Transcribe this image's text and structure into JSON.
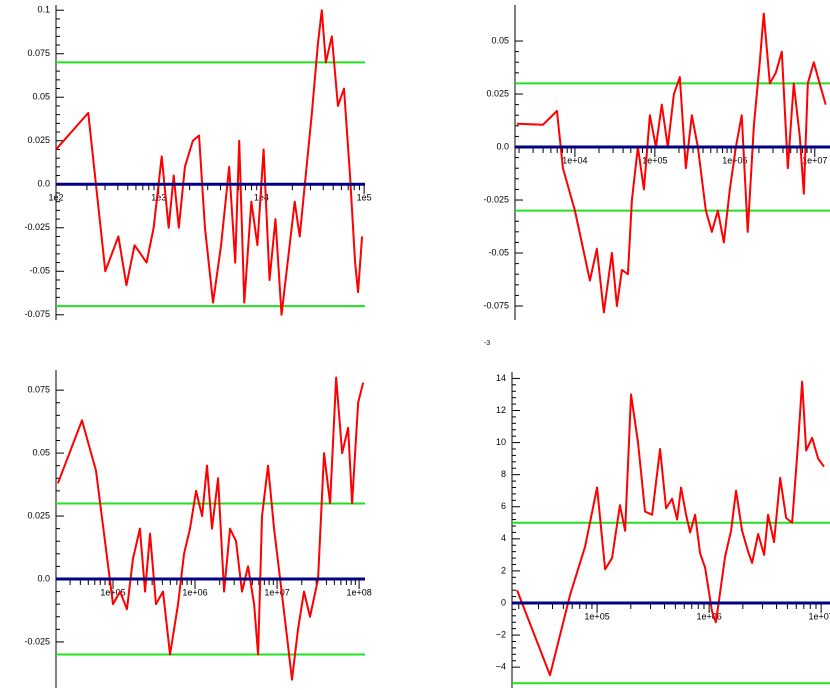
{
  "chart_data": [
    {
      "type": "line",
      "xscale": "log",
      "series": [
        {
          "color": "#ff0000",
          "x": [
            100,
            206,
            302,
            405,
            485,
            582,
            762,
            893,
            1070,
            1250,
            1400,
            1570,
            1800,
            2150,
            2470,
            2820,
            3380,
            4050,
            4850,
            5560,
            6080,
            6810,
            7980,
            9140,
            10500,
            12000,
            13700,
            15700,
            18000,
            21100,
            23600,
            27000,
            30900,
            35400,
            38700,
            42400,
            48500,
            55600,
            63700,
            72900,
            81700,
            87300,
            95500
          ],
          "values": [
            0.02,
            0.041,
            -0.05,
            -0.03,
            -0.058,
            -0.035,
            -0.045,
            -0.025,
            0.016,
            -0.025,
            0.005,
            -0.025,
            0.01,
            0.025,
            0.028,
            -0.025,
            -0.068,
            -0.035,
            0.01,
            -0.045,
            0.025,
            -0.068,
            -0.01,
            -0.035,
            0.02,
            -0.055,
            -0.02,
            -0.075,
            -0.045,
            -0.01,
            -0.03,
            0.005,
            0.04,
            0.08,
            0.1,
            0.07,
            0.085,
            0.045,
            0.055,
            0.005,
            -0.045,
            -0.062,
            -0.03
          ]
        }
      ],
      "xlim": [
        100,
        102000
      ],
      "xticks": [
        {
          "value": 100,
          "label": "1e2"
        },
        {
          "value": 1000,
          "label": "1e3"
        },
        {
          "value": 10000,
          "label": "1e4"
        },
        {
          "value": 100000,
          "label": "1e5"
        }
      ],
      "ylim": [
        -0.078,
        0.103
      ],
      "yticks": [
        {
          "value": -0.075,
          "label": "-0.075"
        },
        {
          "value": -0.05,
          "label": "-0.05"
        },
        {
          "value": -0.025,
          "label": "-0.025"
        },
        {
          "value": 0,
          "label": "0.0"
        },
        0.025,
        0.05,
        0.075,
        0.1
      ],
      "hlines": [
        {
          "value": 0.07,
          "color": "#22e022"
        },
        {
          "value": -0.07,
          "color": "#22e022"
        }
      ],
      "baseline": {
        "value": 0,
        "color": "#000080"
      }
    },
    {
      "type": "line",
      "xscale": "log",
      "series": [
        {
          "color": "#ff0000",
          "x": [
            1880,
            3980,
            5960,
            7080,
            10000,
            15400,
            18800,
            23000,
            29000,
            33500,
            38700,
            46000,
            51600,
            61300,
            72900,
            86600,
            103000,
            122000,
            145000,
            173000,
            205000,
            244000,
            290000,
            345000,
            434000,
            516000,
            613000,
            729000,
            866000,
            1030000,
            1220000,
            1450000,
            1730000,
            2050000,
            2300000,
            2740000,
            3250000,
            3870000,
            4600000,
            5460000,
            6490000,
            7290000,
            8180000,
            9720000,
            11500000,
            13700000
          ],
          "values": [
            0.011,
            0.0105,
            0.017,
            -0.01,
            -0.03,
            -0.063,
            -0.048,
            -0.078,
            -0.05,
            -0.075,
            -0.058,
            -0.06,
            -0.025,
            0,
            -0.02,
            0.015,
            0,
            0.02,
            0,
            0.025,
            0.033,
            -0.01,
            0.015,
            0,
            -0.03,
            -0.04,
            -0.03,
            -0.045,
            -0.02,
            0,
            0.015,
            -0.04,
            0.01,
            0.04,
            0.063,
            0.03,
            0.035,
            0.045,
            -0.01,
            0.03,
            0.005,
            -0.022,
            0.03,
            0.04,
            0.03,
            0.02
          ]
        }
      ],
      "xlim": [
        1780,
        15500000
      ],
      "xticks": [
        {
          "value": 10000,
          "label": "1e+04"
        },
        {
          "value": 100000,
          "label": "1e+05"
        },
        {
          "value": 1000000,
          "label": "1e+06"
        },
        {
          "value": 10000000,
          "label": "1e+07"
        }
      ],
      "ylim": [
        -0.0816,
        0.067
      ],
      "yticks": [
        {
          "value": -0.075,
          "label": "-0.075"
        },
        {
          "value": -0.05,
          "label": "-0.05"
        },
        {
          "value": -0.025,
          "label": "-0.025"
        },
        {
          "value": 0,
          "label": "0.0"
        },
        0.025,
        0.05
      ],
      "hlines": [
        {
          "value": 0.03,
          "color": "#22e022"
        },
        {
          "value": -0.03,
          "color": "#22e022"
        }
      ],
      "baseline": {
        "value": 0,
        "color": "#000080"
      }
    },
    {
      "type": "line",
      "xscale": "log",
      "series": [
        {
          "color": "#ff0000",
          "x": [
            21300,
            41900,
            62100,
            100000,
            122000,
            148000,
            175000,
            213000,
            246000,
            283000,
            334000,
            407000,
            496000,
            621000,
            735000,
            869000,
            1030000,
            1220000,
            1400000,
            1610000,
            1910000,
            2260000,
            2670000,
            3160000,
            3740000,
            4430000,
            5250000,
            5870000,
            6560000,
            7760000,
            9190000,
            10900000,
            12900000,
            15200000,
            18000000,
            21300000,
            25200000,
            31600000,
            37400000,
            44300000,
            52500000,
            62100000,
            73500000,
            82200000,
            97300000,
            112000000
          ],
          "values": [
            0.038,
            0.063,
            0.043,
            -0.01,
            -0.005,
            -0.012,
            0.008,
            0.02,
            -0.005,
            0.018,
            -0.01,
            -0.005,
            -0.03,
            -0.01,
            0.01,
            0.02,
            0.035,
            0.025,
            0.045,
            0.02,
            0.04,
            -0.005,
            0.02,
            0.015,
            -0.005,
            0.005,
            -0.01,
            -0.03,
            0.025,
            0.045,
            0.02,
            0,
            -0.02,
            -0.04,
            -0.02,
            -0.005,
            -0.015,
            0,
            0.05,
            0.03,
            0.08,
            0.05,
            0.06,
            0.03,
            0.07,
            0.078
          ]
        }
      ],
      "xlim": [
        20200,
        118000000
      ],
      "xticks": [
        {
          "value": 100000,
          "label": "1e+05"
        },
        {
          "value": 1000000,
          "label": "1e+06"
        },
        {
          "value": 10000000,
          "label": "1e+07"
        },
        {
          "value": 100000000,
          "label": "1e+08"
        }
      ],
      "ylim": [
        -0.0433,
        0.083
      ],
      "yticks": [
        {
          "value": -0.025,
          "label": "-0.025"
        },
        {
          "value": 0,
          "label": "0.0"
        },
        0.025,
        0.05,
        0.075
      ],
      "hlines": [
        {
          "value": 0.03,
          "color": "#22e022"
        },
        {
          "value": -0.03,
          "color": "#22e022"
        }
      ],
      "baseline": {
        "value": 0,
        "color": "#000080"
      }
    },
    {
      "type": "line",
      "xscale": "log",
      "y_exponent": "-3",
      "series": [
        {
          "color": "#ff0000",
          "x": [
            19300,
            38000,
            57400,
            78100,
            100000,
            118000,
            136000,
            160000,
            178000,
            201000,
            232000,
            268000,
            310000,
            365000,
            413000,
            467000,
            518000,
            562000,
            623000,
            677000,
            750000,
            831000,
            921000,
            1060000,
            1150000,
            1250000,
            1390000,
            1570000,
            1740000,
            1970000,
            2230000,
            2420000,
            2740000,
            3100000,
            3360000,
            3800000,
            4310000,
            4870000,
            5510000,
            6230000,
            6770000,
            7350000,
            8310000,
            9400000,
            10600000
          ],
          "values": [
            0.8,
            -4.5,
            0.5,
            3.5,
            7.2,
            2.1,
            2.8,
            6.1,
            4.5,
            13,
            10,
            5.7,
            5.5,
            9.6,
            5.9,
            6.5,
            5.2,
            7.2,
            5.5,
            4.4,
            5.5,
            3.1,
            2.2,
            -0.5,
            -1.2,
            0.6,
            2.9,
            4.5,
            7,
            4.5,
            3.2,
            2.5,
            4.3,
            3,
            5.5,
            3.8,
            7.8,
            5.3,
            5,
            10,
            13.8,
            9.5,
            10.3,
            9,
            8.5
          ]
        }
      ],
      "xlim": [
        17400,
        12000000
      ],
      "xticks": [
        {
          "value": 100000,
          "label": "1e+05"
        },
        {
          "value": 1000000,
          "label": "1e+06"
        },
        {
          "value": 10000000,
          "label": "1e+07"
        }
      ],
      "ylim": [
        -5.3,
        14.4
      ],
      "yticks": [
        {
          "value": -4,
          "label": "−4"
        },
        {
          "value": -2,
          "label": "−2"
        },
        0,
        2,
        4,
        6,
        8,
        10,
        12,
        14
      ],
      "hlines": [
        {
          "value": 5,
          "color": "#22e022"
        },
        {
          "value": -5,
          "color": "#22e022"
        }
      ],
      "baseline": {
        "value": 0,
        "color": "#000080"
      }
    }
  ]
}
